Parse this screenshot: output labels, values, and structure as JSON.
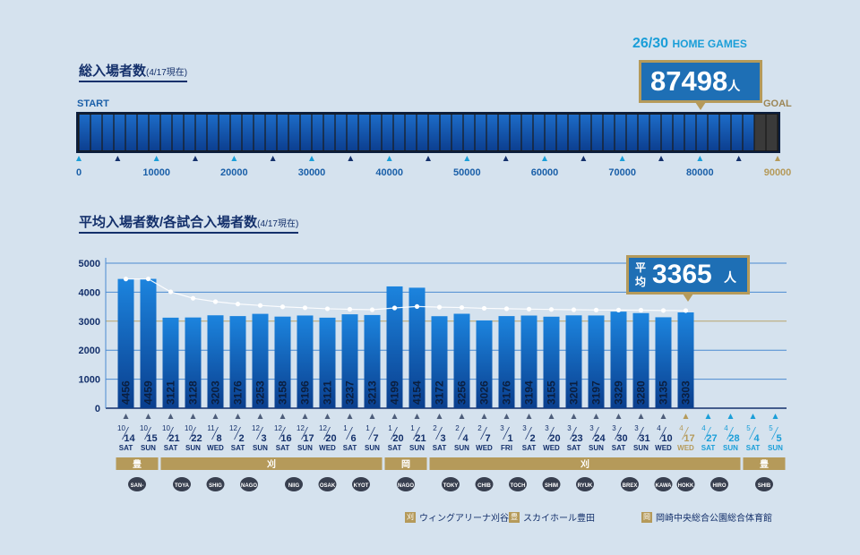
{
  "total": {
    "title": "総入場者数",
    "note": "(4/17現在)",
    "start_label": "START",
    "goal_label": "GOAL",
    "home_games": "26/30",
    "home_games_unit": "HOME GAMES",
    "value": "87498",
    "unit": "人"
  },
  "avg": {
    "title": "平均入場者数/各試合入場者数",
    "note": "(4/17現在)",
    "badge_prefix": "平均",
    "value": "3365",
    "unit": "人"
  },
  "chart_data": [
    {
      "type": "bar",
      "title": "総入場者数",
      "values": [
        87498
      ],
      "xlim": [
        0,
        90000
      ],
      "x_ticks": [
        0,
        10000,
        20000,
        30000,
        40000,
        50000,
        60000,
        70000,
        80000,
        90000
      ],
      "goal": 90000
    },
    {
      "type": "bar",
      "title": "平均入場者数/各試合入場者数",
      "ylim": [
        0,
        5000
      ],
      "y_ticks": [
        0,
        1000,
        2000,
        3000,
        4000,
        5000
      ],
      "games": [
        {
          "m": "10",
          "d": "14",
          "dow": "SAT",
          "att": 4456,
          "avg": 4456,
          "venue": "豊",
          "team": "SAN-EN"
        },
        {
          "m": "10",
          "d": "15",
          "dow": "SUN",
          "att": 4459,
          "avg": 4458,
          "venue": "豊",
          "team": ""
        },
        {
          "m": "10",
          "d": "21",
          "dow": "SAT",
          "att": 3121,
          "avg": 4012,
          "venue": "刈",
          "team": "TOYAMA"
        },
        {
          "m": "10",
          "d": "22",
          "dow": "SUN",
          "att": 3128,
          "avg": 3791,
          "venue": "刈",
          "team": ""
        },
        {
          "m": "11",
          "d": "8",
          "dow": "WED",
          "att": 3203,
          "avg": 3673,
          "venue": "刈",
          "team": "SHIGA"
        },
        {
          "m": "12",
          "d": "2",
          "dow": "SAT",
          "att": 3176,
          "avg": 3591,
          "venue": "刈",
          "team": "NAGOYA"
        },
        {
          "m": "12",
          "d": "3",
          "dow": "SUN",
          "att": 3253,
          "avg": 3543,
          "venue": "刈",
          "team": ""
        },
        {
          "m": "12",
          "d": "16",
          "dow": "SAT",
          "att": 3158,
          "avg": 3495,
          "venue": "刈",
          "team": "NIIGATA"
        },
        {
          "m": "12",
          "d": "17",
          "dow": "SUN",
          "att": 3196,
          "avg": 3462,
          "venue": "刈",
          "team": ""
        },
        {
          "m": "12",
          "d": "20",
          "dow": "WED",
          "att": 3121,
          "avg": 3428,
          "venue": "刈",
          "team": "OSAKA"
        },
        {
          "m": "1",
          "d": "6",
          "dow": "SAT",
          "att": 3237,
          "avg": 3410,
          "venue": "刈",
          "team": "KYOTO"
        },
        {
          "m": "1",
          "d": "7",
          "dow": "SUN",
          "att": 3213,
          "avg": 3394,
          "venue": "刈",
          "team": ""
        },
        {
          "m": "1",
          "d": "20",
          "dow": "SAT",
          "att": 4199,
          "avg": 3456,
          "venue": "岡",
          "team": "NAGOYA D"
        },
        {
          "m": "1",
          "d": "21",
          "dow": "SUN",
          "att": 4154,
          "avg": 3506,
          "venue": "岡",
          "team": ""
        },
        {
          "m": "2",
          "d": "3",
          "dow": "SAT",
          "att": 3172,
          "avg": 3484,
          "venue": "刈",
          "team": "TOKYO"
        },
        {
          "m": "2",
          "d": "4",
          "dow": "SUN",
          "att": 3256,
          "avg": 3470,
          "venue": "刈",
          "team": ""
        },
        {
          "m": "2",
          "d": "7",
          "dow": "WED",
          "att": 3026,
          "avg": 3444,
          "venue": "刈",
          "team": "CHIBA"
        },
        {
          "m": "3",
          "d": "1",
          "dow": "FRI",
          "att": 3176,
          "avg": 3429,
          "venue": "刈",
          "team": "TOCHIGI"
        },
        {
          "m": "3",
          "d": "2",
          "dow": "SAT",
          "att": 3194,
          "avg": 3417,
          "venue": "刈",
          "team": ""
        },
        {
          "m": "3",
          "d": "20",
          "dow": "WED",
          "att": 3155,
          "avg": 3404,
          "venue": "刈",
          "team": "SHIMANE"
        },
        {
          "m": "3",
          "d": "23",
          "dow": "SAT",
          "att": 3201,
          "avg": 3394,
          "venue": "刈",
          "team": "RYUKYU"
        },
        {
          "m": "3",
          "d": "24",
          "dow": "SUN",
          "att": 3197,
          "avg": 3385,
          "venue": "刈",
          "team": ""
        },
        {
          "m": "3",
          "d": "30",
          "dow": "SAT",
          "att": 3329,
          "avg": 3383,
          "venue": "刈",
          "team": "BREX"
        },
        {
          "m": "3",
          "d": "31",
          "dow": "SUN",
          "att": 3280,
          "avg": 3379,
          "venue": "刈",
          "team": ""
        },
        {
          "m": "4",
          "d": "10",
          "dow": "WED",
          "att": 3135,
          "avg": 3369,
          "venue": "刈",
          "team": "KAWASAKI"
        },
        {
          "m": "4",
          "d": "17",
          "dow": "WED",
          "att": 3303,
          "avg": 3365,
          "venue": "刈",
          "team": "HOKKAIDO"
        },
        {
          "m": "4",
          "d": "27",
          "dow": "SAT",
          "att": null,
          "avg": null,
          "venue": "刈",
          "team": "HIROSHIMA"
        },
        {
          "m": "4",
          "d": "28",
          "dow": "SUN",
          "att": null,
          "avg": null,
          "venue": "刈",
          "team": ""
        },
        {
          "m": "5",
          "d": "4",
          "dow": "SAT",
          "att": null,
          "avg": null,
          "venue": "豊",
          "team": "SHIBUYA"
        },
        {
          "m": "5",
          "d": "5",
          "dow": "SUN",
          "att": null,
          "avg": null,
          "venue": "豊",
          "team": ""
        }
      ]
    }
  ],
  "legend": [
    {
      "key": "刈",
      "label": "ウィングアリーナ刈谷"
    },
    {
      "key": "豊",
      "label": "スカイホール豊田"
    },
    {
      "key": "岡",
      "label": "岡崎中央総合公園総合体育館"
    }
  ],
  "colors": {
    "navy": "#14306b",
    "bar_top": "#1d7fd8",
    "bar_bottom": "#0b3f8e",
    "gold": "#b59a5a",
    "cyan": "#1a9ed8",
    "grid_blue": "#4a8ad0",
    "dark_slot": "#3a3a3a"
  }
}
